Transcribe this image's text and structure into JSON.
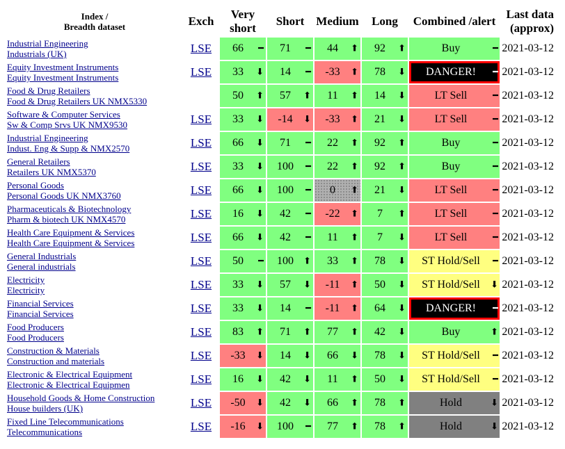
{
  "headers": {
    "index": [
      "Index /",
      "Breadth dataset"
    ],
    "exch": "Exch",
    "very_short": [
      "Very",
      "short"
    ],
    "short": "Short",
    "medium": "Medium",
    "long": "Long",
    "combined": "Combined /alert",
    "last_data": [
      "Last data",
      "(approx)"
    ]
  },
  "colors": {
    "green": "#80ff80",
    "red": "#ff8080",
    "yellow": "#ffff80",
    "grey": "#808080",
    "danger": "#000000"
  },
  "icons": {
    "up": "⬆",
    "down": "⬇",
    "flat": "━"
  },
  "rows": [
    {
      "name1": "Industrial Engineering",
      "name2": "Industrials (UK)",
      "exch": "LSE",
      "vs": [
        "66",
        "flat",
        "green"
      ],
      "sh": [
        "71",
        "flat",
        "green"
      ],
      "me": [
        "44",
        "up",
        "green"
      ],
      "lo": [
        "92",
        "up",
        "green"
      ],
      "comb": [
        "Buy",
        "flat",
        "green"
      ],
      "date": "2021-03-12"
    },
    {
      "name1": "Equity Investment Instruments",
      "name2": "Equity Investment Instruments",
      "exch": "LSE",
      "vs": [
        "33",
        "down",
        "green"
      ],
      "sh": [
        "14",
        "flat",
        "green"
      ],
      "me": [
        "-33",
        "up",
        "red"
      ],
      "lo": [
        "78",
        "down",
        "green"
      ],
      "comb": [
        "DANGER!",
        "flat",
        "danger"
      ],
      "date": "2021-03-12"
    },
    {
      "name1": "Food & Drug Retailers",
      "name2": "Food & Drug Retailers UK NMX5330",
      "exch": "",
      "vs": [
        "50",
        "up",
        "green"
      ],
      "sh": [
        "57",
        "up",
        "green"
      ],
      "me": [
        "11",
        "up",
        "green"
      ],
      "lo": [
        "14",
        "down",
        "green"
      ],
      "comb": [
        "LT Sell",
        "flat",
        "red"
      ],
      "date": "2021-03-12"
    },
    {
      "name1": "Software & Computer Services",
      "name2": "Sw & Comp Srvs UK NMX9530",
      "exch": "LSE",
      "vs": [
        "33",
        "down",
        "green"
      ],
      "sh": [
        "-14",
        "down",
        "red"
      ],
      "me": [
        "-33",
        "up",
        "red"
      ],
      "lo": [
        "21",
        "down",
        "green"
      ],
      "comb": [
        "LT Sell",
        "flat",
        "red"
      ],
      "date": "2021-03-12"
    },
    {
      "name1": "Industrial Engineering",
      "name2": "Indust. Eng & Supp & NMX2570",
      "exch": "LSE",
      "vs": [
        "66",
        "down",
        "green"
      ],
      "sh": [
        "71",
        "flat",
        "green"
      ],
      "me": [
        "22",
        "up",
        "green"
      ],
      "lo": [
        "92",
        "up",
        "green"
      ],
      "comb": [
        "Buy",
        "flat",
        "green"
      ],
      "date": "2021-03-12"
    },
    {
      "name1": "General Retailers",
      "name2": "Retailers UK NMX5370",
      "exch": "LSE",
      "vs": [
        "33",
        "down",
        "green"
      ],
      "sh": [
        "100",
        "flat",
        "green"
      ],
      "me": [
        "22",
        "up",
        "green"
      ],
      "lo": [
        "92",
        "up",
        "green"
      ],
      "comb": [
        "Buy",
        "flat",
        "green"
      ],
      "date": "2021-03-12"
    },
    {
      "name1": "Personal Goods",
      "name2": "Personal Goods UK NMX3760",
      "exch": "LSE",
      "vs": [
        "66",
        "down",
        "green"
      ],
      "sh": [
        "100",
        "flat",
        "green"
      ],
      "me": [
        "0",
        "up",
        "hatch"
      ],
      "lo": [
        "21",
        "down",
        "green"
      ],
      "comb": [
        "LT Sell",
        "flat",
        "red"
      ],
      "date": "2021-03-12"
    },
    {
      "name1": "Pharmaceuticals & Biotechnology",
      "name2": "Pharm & biotech UK NMX4570",
      "exch": "LSE",
      "vs": [
        "16",
        "down",
        "green"
      ],
      "sh": [
        "42",
        "flat",
        "green"
      ],
      "me": [
        "-22",
        "up",
        "red"
      ],
      "lo": [
        "7",
        "up",
        "green"
      ],
      "comb": [
        "LT Sell",
        "flat",
        "red"
      ],
      "date": "2021-03-12"
    },
    {
      "name1": "Health Care Equipment & Services",
      "name2": "Health Care Equipment & Services",
      "exch": "LSE",
      "vs": [
        "66",
        "down",
        "green"
      ],
      "sh": [
        "42",
        "flat",
        "green"
      ],
      "me": [
        "11",
        "up",
        "green"
      ],
      "lo": [
        "7",
        "down",
        "green"
      ],
      "comb": [
        "LT Sell",
        "flat",
        "red"
      ],
      "date": "2021-03-12"
    },
    {
      "name1": "General Industrials",
      "name2": "General industrials",
      "exch": "LSE",
      "vs": [
        "50",
        "flat",
        "green"
      ],
      "sh": [
        "100",
        "up",
        "green"
      ],
      "me": [
        "33",
        "up",
        "green"
      ],
      "lo": [
        "78",
        "down",
        "green"
      ],
      "comb": [
        "ST Hold/Sell",
        "flat",
        "yellow"
      ],
      "date": "2021-03-12"
    },
    {
      "name1": "Electricity",
      "name2": "Electricity",
      "exch": "LSE",
      "vs": [
        "33",
        "down",
        "green"
      ],
      "sh": [
        "57",
        "down",
        "green"
      ],
      "me": [
        "-11",
        "up",
        "red"
      ],
      "lo": [
        "50",
        "down",
        "green"
      ],
      "comb": [
        "ST Hold/Sell",
        "down",
        "yellow"
      ],
      "date": "2021-03-12"
    },
    {
      "name1": "Financial Services",
      "name2": "Financial Services",
      "exch": "LSE",
      "vs": [
        "33",
        "down",
        "green"
      ],
      "sh": [
        "14",
        "flat",
        "green"
      ],
      "me": [
        "-11",
        "up",
        "red"
      ],
      "lo": [
        "64",
        "down",
        "green"
      ],
      "comb": [
        "DANGER!",
        "flat",
        "danger"
      ],
      "date": "2021-03-12"
    },
    {
      "name1": "Food Producers",
      "name2": "Food Producers",
      "exch": "LSE",
      "vs": [
        "83",
        "up",
        "green"
      ],
      "sh": [
        "71",
        "up",
        "green"
      ],
      "me": [
        "77",
        "up",
        "green"
      ],
      "lo": [
        "42",
        "down",
        "green"
      ],
      "comb": [
        "Buy",
        "up",
        "green"
      ],
      "date": "2021-03-12"
    },
    {
      "name1": "Construction & Materials",
      "name2": "Construction and materials",
      "exch": "LSE",
      "vs": [
        "-33",
        "down",
        "red"
      ],
      "sh": [
        "14",
        "down",
        "green"
      ],
      "me": [
        "66",
        "down",
        "green"
      ],
      "lo": [
        "78",
        "down",
        "green"
      ],
      "comb": [
        "ST Hold/Sell",
        "flat",
        "yellow"
      ],
      "date": "2021-03-12"
    },
    {
      "name1": "Electronic & Electrical Equipment",
      "name2": "Electronic & Electrical Equipmen",
      "exch": "LSE",
      "vs": [
        "16",
        "down",
        "green"
      ],
      "sh": [
        "42",
        "down",
        "green"
      ],
      "me": [
        "11",
        "up",
        "green"
      ],
      "lo": [
        "50",
        "down",
        "green"
      ],
      "comb": [
        "ST Hold/Sell",
        "flat",
        "yellow"
      ],
      "date": "2021-03-12"
    },
    {
      "name1": "Household Goods & Home Construction",
      "name2": "House builders (UK)",
      "exch": "LSE",
      "vs": [
        "-50",
        "down",
        "red"
      ],
      "sh": [
        "42",
        "down",
        "green"
      ],
      "me": [
        "66",
        "up",
        "green"
      ],
      "lo": [
        "78",
        "up",
        "green"
      ],
      "comb": [
        "Hold",
        "down",
        "grey"
      ],
      "date": "2021-03-12"
    },
    {
      "name1": "Fixed Line Telecommunications",
      "name2": "Telecommunications",
      "exch": "LSE",
      "vs": [
        "-16",
        "down",
        "red"
      ],
      "sh": [
        "100",
        "flat",
        "green"
      ],
      "me": [
        "77",
        "up",
        "green"
      ],
      "lo": [
        "78",
        "up",
        "green"
      ],
      "comb": [
        "Hold",
        "down",
        "grey"
      ],
      "date": "2021-03-12"
    }
  ]
}
